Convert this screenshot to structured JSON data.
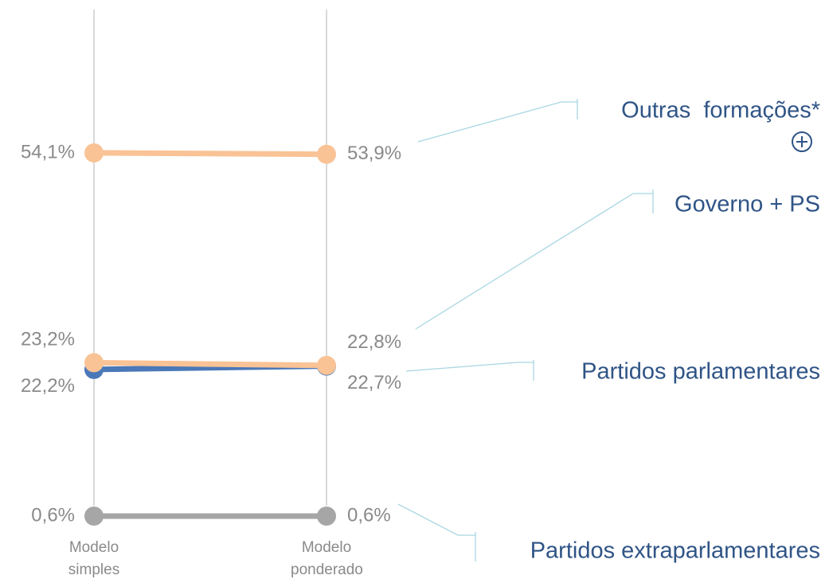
{
  "chart_data": {
    "type": "line",
    "categories": [
      "Modelo simples",
      "Modelo ponderado"
    ],
    "series": [
      {
        "name": "Outras  formações*",
        "color": "#f9c396",
        "values": [
          54.1,
          53.9
        ],
        "value_labels": [
          "54,1%",
          "53,9%"
        ]
      },
      {
        "name": "Governo + PS",
        "color": "#f9c396",
        "values": [
          23.2,
          22.8
        ],
        "value_labels": [
          "23,2%",
          "22,8%"
        ]
      },
      {
        "name": "Partidos parlamentares",
        "color": "#4a78b8",
        "values": [
          22.2,
          22.7
        ],
        "value_labels": [
          "22,2%",
          "22,7%"
        ]
      },
      {
        "name": "Partidos extraparlamentares",
        "color": "#a6a6a6",
        "values": [
          0.6,
          0.6
        ],
        "value_labels": [
          "0,6%",
          "0,6%"
        ]
      }
    ]
  }
}
